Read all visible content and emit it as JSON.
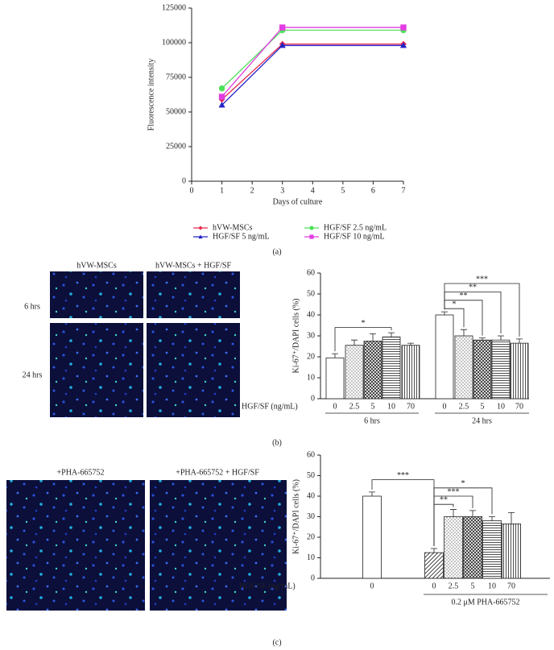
{
  "captions": [
    "(a)",
    "(b)",
    "(c)"
  ],
  "images": [
    {
      "columns": [
        "hVW-MSCs",
        "hVW-MSCs + HGF/SF"
      ],
      "rows": [
        "6 hrs",
        "24 hrs"
      ]
    },
    {
      "columns": [
        "+PHA-665752",
        "+PHA-665752 + HGF/SF"
      ]
    }
  ],
  "chart_data": [
    {
      "type": "line",
      "xlabel": "Days of culture",
      "ylabel": "Fluorescence intensity",
      "x": [
        1,
        3,
        7
      ],
      "xlim": [
        0,
        7
      ],
      "xticks": [
        0,
        1,
        2,
        3,
        4,
        5,
        6,
        7
      ],
      "ylim": [
        0,
        125000
      ],
      "yticks": [
        0,
        25000,
        50000,
        75000,
        100000,
        125000
      ],
      "legend": "bottom",
      "series": [
        {
          "name": "hVW-MSCs",
          "color": "#e8294f",
          "marker": "diamond",
          "values": [
            59000,
            99000,
            99000
          ]
        },
        {
          "name": "HGF/SF 2.5 ng/mL",
          "color": "#4fe05a",
          "marker": "circle",
          "values": [
            67000,
            109000,
            109000
          ]
        },
        {
          "name": "HGF/SF 5 ng/mL",
          "color": "#2424c8",
          "marker": "triangle",
          "values": [
            55000,
            98000,
            98000
          ]
        },
        {
          "name": "HGF/SF 10 ng/mL",
          "color": "#e23ce2",
          "marker": "square",
          "values": [
            61000,
            111000,
            111000
          ]
        }
      ]
    },
    {
      "type": "bar",
      "ylabel": "Ki-67⁺/DAPI cells (%)",
      "xlabel": "HGF/SF (ng/mL)",
      "categories": [
        "0",
        "2.5",
        "5",
        "10",
        "70",
        "0",
        "2.5",
        "5",
        "10",
        "70"
      ],
      "values": [
        19.5,
        25.5,
        27.5,
        29.5,
        25.5,
        40,
        30,
        28,
        28,
        26.5
      ],
      "errors": [
        2,
        2.5,
        3.5,
        2,
        1,
        1.5,
        3,
        1,
        2,
        2
      ],
      "patterns": [
        "none",
        "dots",
        "cross",
        "hlines",
        "vlines",
        "none",
        "dots",
        "cross",
        "hlines",
        "vlines"
      ],
      "groups": [
        "6 hrs",
        "24 hrs"
      ],
      "annotations": [
        "*",
        "***",
        "**",
        "**",
        "*"
      ],
      "ylim": [
        0,
        60
      ],
      "yticks": [
        0,
        10,
        20,
        30,
        40,
        50,
        60
      ]
    },
    {
      "type": "bar",
      "ylabel": "Ki-67⁺/DAPI cells (%)",
      "xlabel": "HGF/SF (ng/mL)",
      "categories": [
        "0",
        "0",
        "2.5",
        "5",
        "10",
        "70"
      ],
      "values": [
        40,
        12.5,
        30,
        30,
        28,
        26.5
      ],
      "errors": [
        2,
        2,
        3.5,
        3,
        2,
        5.5
      ],
      "patterns": [
        "none",
        "diag",
        "dots",
        "cross",
        "hlines",
        "vlines"
      ],
      "groups": [
        "0.2 μM PHA-665752"
      ],
      "annotations": [
        "***",
        "**",
        "***",
        "*"
      ],
      "ylim": [
        0,
        60
      ],
      "yticks": [
        0,
        10,
        20,
        30,
        40,
        50,
        60
      ]
    }
  ]
}
